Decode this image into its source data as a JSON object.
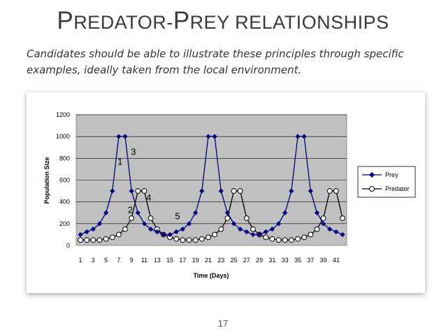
{
  "slide": {
    "title_first_letter_1": "P",
    "title_rest_1": "REDATOR-",
    "title_first_letter_2": "P",
    "title_rest_2": "REY RELATIONSHIPS",
    "subtitle": "Candidates should be able to illustrate these principles through specific examples, ideally taken from the local environment.",
    "page_number": "17"
  },
  "colors": {
    "plot_background": "#c0c0c0",
    "prey_series": "#000080",
    "predator_series": "#000000"
  },
  "chart_data": {
    "type": "line",
    "title": "",
    "xlabel": "Time (Days)",
    "ylabel": "Population Size",
    "ylim": [
      0,
      1200
    ],
    "yticks": [
      0,
      200,
      400,
      600,
      800,
      1000,
      1200
    ],
    "x": [
      1,
      2,
      3,
      4,
      5,
      6,
      7,
      8,
      9,
      10,
      11,
      12,
      13,
      14,
      15,
      16,
      17,
      18,
      19,
      20,
      21,
      22,
      23,
      24,
      25,
      26,
      27,
      28,
      29,
      30,
      31,
      32,
      33,
      34,
      35,
      36,
      37,
      38,
      39,
      40,
      41,
      42
    ],
    "xtick_labels": [
      "1",
      "3",
      "5",
      "7",
      "9",
      "11",
      "13",
      "15",
      "17",
      "19",
      "21",
      "23",
      "25",
      "27",
      "29",
      "31",
      "33",
      "35",
      "37",
      "39",
      "41"
    ],
    "grid": "horizontal",
    "legend_position": "right",
    "series": [
      {
        "name": "Prey",
        "marker": "diamond",
        "values": [
          100,
          125,
          150,
          200,
          300,
          500,
          1000,
          1000,
          500,
          300,
          200,
          150,
          125,
          100,
          100,
          125,
          150,
          200,
          300,
          500,
          1000,
          1000,
          500,
          300,
          200,
          150,
          125,
          100,
          100,
          125,
          150,
          200,
          300,
          500,
          1000,
          1000,
          500,
          300,
          200,
          150,
          125,
          100
        ]
      },
      {
        "name": "Predator",
        "marker": "circle",
        "values": [
          50,
          50,
          50,
          50,
          60,
          75,
          100,
          150,
          250,
          500,
          500,
          250,
          150,
          100,
          75,
          60,
          50,
          50,
          50,
          60,
          75,
          100,
          150,
          250,
          500,
          500,
          250,
          150,
          100,
          75,
          60,
          50,
          50,
          50,
          60,
          75,
          100,
          150,
          250,
          500,
          500,
          250
        ]
      }
    ],
    "annotations": [
      {
        "text": "1",
        "x": 7.2,
        "y": 740
      },
      {
        "text": "2",
        "x": 8.8,
        "y": 300
      },
      {
        "text": "3",
        "x": 9.3,
        "y": 830
      },
      {
        "text": "4",
        "x": 11.7,
        "y": 410
      },
      {
        "text": "5",
        "x": 16.2,
        "y": 240
      }
    ]
  }
}
